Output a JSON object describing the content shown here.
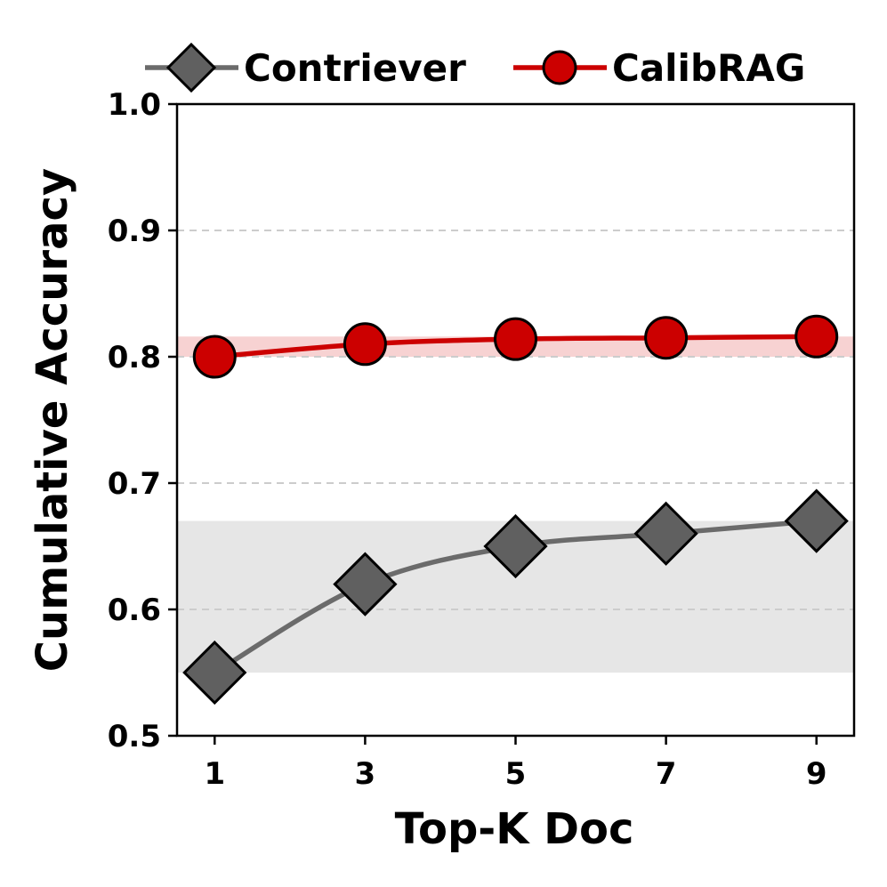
{
  "chart_data": {
    "type": "line",
    "title": "",
    "xlabel": "Top-K Doc",
    "ylabel": "Cumulative Accuracy",
    "x": [
      1,
      3,
      5,
      7,
      9
    ],
    "x_ticks": [
      "1",
      "3",
      "5",
      "7",
      "9"
    ],
    "xlim": [
      0.5,
      9.5
    ],
    "ylim": [
      0.5,
      1.0
    ],
    "y_ticks": [
      "0.5",
      "0.6",
      "0.7",
      "0.8",
      "0.9",
      "1.0"
    ],
    "grid": "horizontal dashed",
    "legend": "top, outside plot",
    "series": [
      {
        "name": "Contriever",
        "values": [
          0.55,
          0.62,
          0.65,
          0.66,
          0.67
        ],
        "band": [
          0.55,
          0.67
        ],
        "line_color": "#6b6b6b",
        "marker_color": "#606060",
        "band_color": "#e6e6e6",
        "marker": "diamond"
      },
      {
        "name": "CalibRAG",
        "values": [
          0.8,
          0.81,
          0.814,
          0.815,
          0.816
        ],
        "band": [
          0.8,
          0.816
        ],
        "line_color": "#cc0000",
        "marker_color": "#cc0000",
        "band_color": "#f7d2d2",
        "marker": "circle"
      }
    ]
  }
}
